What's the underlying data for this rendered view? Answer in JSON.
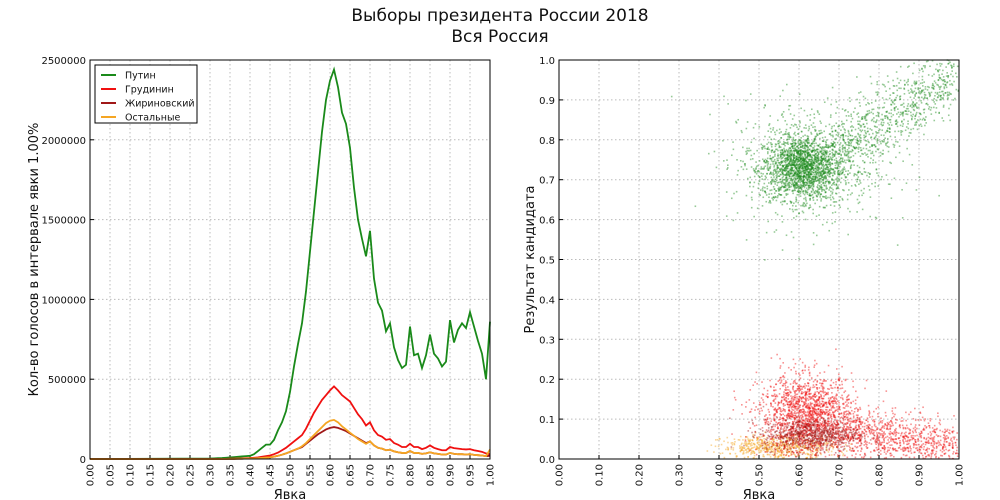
{
  "title": "Выборы президента России 2018",
  "subtitle": "Вся Россия",
  "chart_data": [
    {
      "type": "line",
      "xlabel": "Явка",
      "ylabel": "Кол-во голосов в интервале явки 1.00%",
      "xlim": [
        0,
        1
      ],
      "ylim": [
        0,
        2500000
      ],
      "grid": true,
      "legend_position": "top-left",
      "xticks": [
        "0.00",
        "0.05",
        "0.10",
        "0.15",
        "0.20",
        "0.25",
        "0.30",
        "0.35",
        "0.40",
        "0.45",
        "0.50",
        "0.55",
        "0.60",
        "0.65",
        "0.70",
        "0.75",
        "0.80",
        "0.85",
        "0.90",
        "0.95",
        "1.00"
      ],
      "yticks": [
        "0",
        "500000",
        "1000000",
        "1500000",
        "2000000",
        "2500000"
      ],
      "x_start": 0.3,
      "x_step": 0.01,
      "series_unit": 1000,
      "series": [
        {
          "name": "Путин",
          "color": "#1a8a1a",
          "values": [
            3,
            4,
            5,
            6,
            8,
            10,
            12,
            14,
            16,
            18,
            20,
            30,
            50,
            70,
            90,
            90,
            120,
            180,
            230,
            300,
            420,
            580,
            720,
            850,
            1050,
            1300,
            1550,
            1800,
            2050,
            2250,
            2370,
            2440,
            2330,
            2170,
            2100,
            1950,
            1700,
            1500,
            1380,
            1270,
            1430,
            1130,
            980,
            930,
            800,
            850,
            700,
            620,
            570,
            590,
            830,
            650,
            660,
            570,
            650,
            780,
            660,
            630,
            580,
            610,
            870,
            730,
            810,
            850,
            820,
            920,
            830,
            740,
            660,
            500,
            860
          ]
        },
        {
          "name": "Грудинин",
          "color": "#f01010",
          "values": [
            0,
            0,
            1,
            1,
            1,
            2,
            2,
            3,
            4,
            5,
            6,
            8,
            10,
            14,
            18,
            22,
            30,
            40,
            55,
            70,
            90,
            110,
            130,
            150,
            190,
            240,
            290,
            330,
            370,
            400,
            430,
            455,
            430,
            400,
            380,
            360,
            320,
            280,
            250,
            210,
            230,
            180,
            150,
            140,
            120,
            125,
            100,
            90,
            75,
            75,
            95,
            75,
            75,
            62,
            70,
            85,
            70,
            62,
            55,
            55,
            75,
            68,
            65,
            62,
            60,
            62,
            55,
            50,
            45,
            35,
            30
          ]
        },
        {
          "name": "Жириновский",
          "color": "#a01818",
          "values": [
            0,
            0,
            0,
            1,
            1,
            1,
            1,
            2,
            2,
            3,
            3,
            4,
            5,
            7,
            9,
            11,
            15,
            20,
            27,
            35,
            45,
            55,
            65,
            75,
            95,
            115,
            135,
            155,
            170,
            185,
            195,
            200,
            195,
            185,
            175,
            160,
            145,
            130,
            115,
            100,
            110,
            85,
            70,
            65,
            55,
            58,
            48,
            42,
            38,
            38,
            50,
            38,
            38,
            32,
            35,
            42,
            35,
            32,
            28,
            28,
            38,
            32,
            30,
            30,
            28,
            30,
            26,
            24,
            22,
            18,
            20
          ]
        },
        {
          "name": "Остальные",
          "color": "#f5a623",
          "values": [
            0,
            0,
            0,
            1,
            1,
            1,
            1,
            2,
            2,
            3,
            3,
            4,
            5,
            7,
            9,
            11,
            15,
            20,
            27,
            35,
            45,
            55,
            65,
            80,
            100,
            125,
            150,
            175,
            200,
            225,
            240,
            245,
            230,
            205,
            185,
            165,
            145,
            125,
            110,
            95,
            110,
            85,
            70,
            65,
            55,
            58,
            48,
            42,
            38,
            38,
            50,
            38,
            38,
            32,
            35,
            42,
            35,
            32,
            28,
            28,
            38,
            32,
            30,
            30,
            28,
            30,
            26,
            24,
            22,
            18,
            60
          ]
        }
      ]
    },
    {
      "type": "scatter",
      "xlabel": "Явка",
      "ylabel": "Результат кандидата",
      "xlim": [
        0,
        1
      ],
      "ylim": [
        0,
        1
      ],
      "grid": true,
      "xticks": [
        "0.00",
        "0.10",
        "0.20",
        "0.30",
        "0.40",
        "0.50",
        "0.60",
        "0.70",
        "0.80",
        "0.90",
        "1.00"
      ],
      "yticks": [
        "0.0",
        "0.1",
        "0.2",
        "0.3",
        "0.4",
        "0.5",
        "0.6",
        "0.7",
        "0.8",
        "0.9",
        "1.0"
      ],
      "clusters": [
        {
          "name": "Путин",
          "color": "#1a8a1a",
          "mean": [
            0.61,
            0.73
          ],
          "sd": [
            0.05,
            0.04
          ],
          "n": 1800
        },
        {
          "name": "Путин",
          "color": "#1a8a1a",
          "mean": [
            0.62,
            0.74
          ],
          "sd": [
            0.1,
            0.08
          ],
          "n": 600
        },
        {
          "name": "Путин",
          "color": "#1a8a1a",
          "trend_from": [
            0.7,
            0.78
          ],
          "trend_to": [
            1.0,
            0.97
          ],
          "sd": [
            0.03,
            0.04
          ],
          "n": 800
        },
        {
          "name": "Остальные",
          "color": "#f5a623",
          "mean": [
            0.55,
            0.03
          ],
          "sd": [
            0.07,
            0.015
          ],
          "n": 600
        },
        {
          "name": "Грудинин",
          "color": "#f01010",
          "mean": [
            0.62,
            0.11
          ],
          "sd": [
            0.06,
            0.05
          ],
          "n": 1600
        },
        {
          "name": "Грудинин",
          "color": "#f01010",
          "trend_from": [
            0.7,
            0.07
          ],
          "trend_to": [
            1.0,
            0.03
          ],
          "sd": [
            0.02,
            0.03
          ],
          "n": 900
        },
        {
          "name": "Жириновский",
          "color": "#a01818",
          "mean": [
            0.63,
            0.06
          ],
          "sd": [
            0.06,
            0.02
          ],
          "n": 700
        }
      ]
    }
  ]
}
